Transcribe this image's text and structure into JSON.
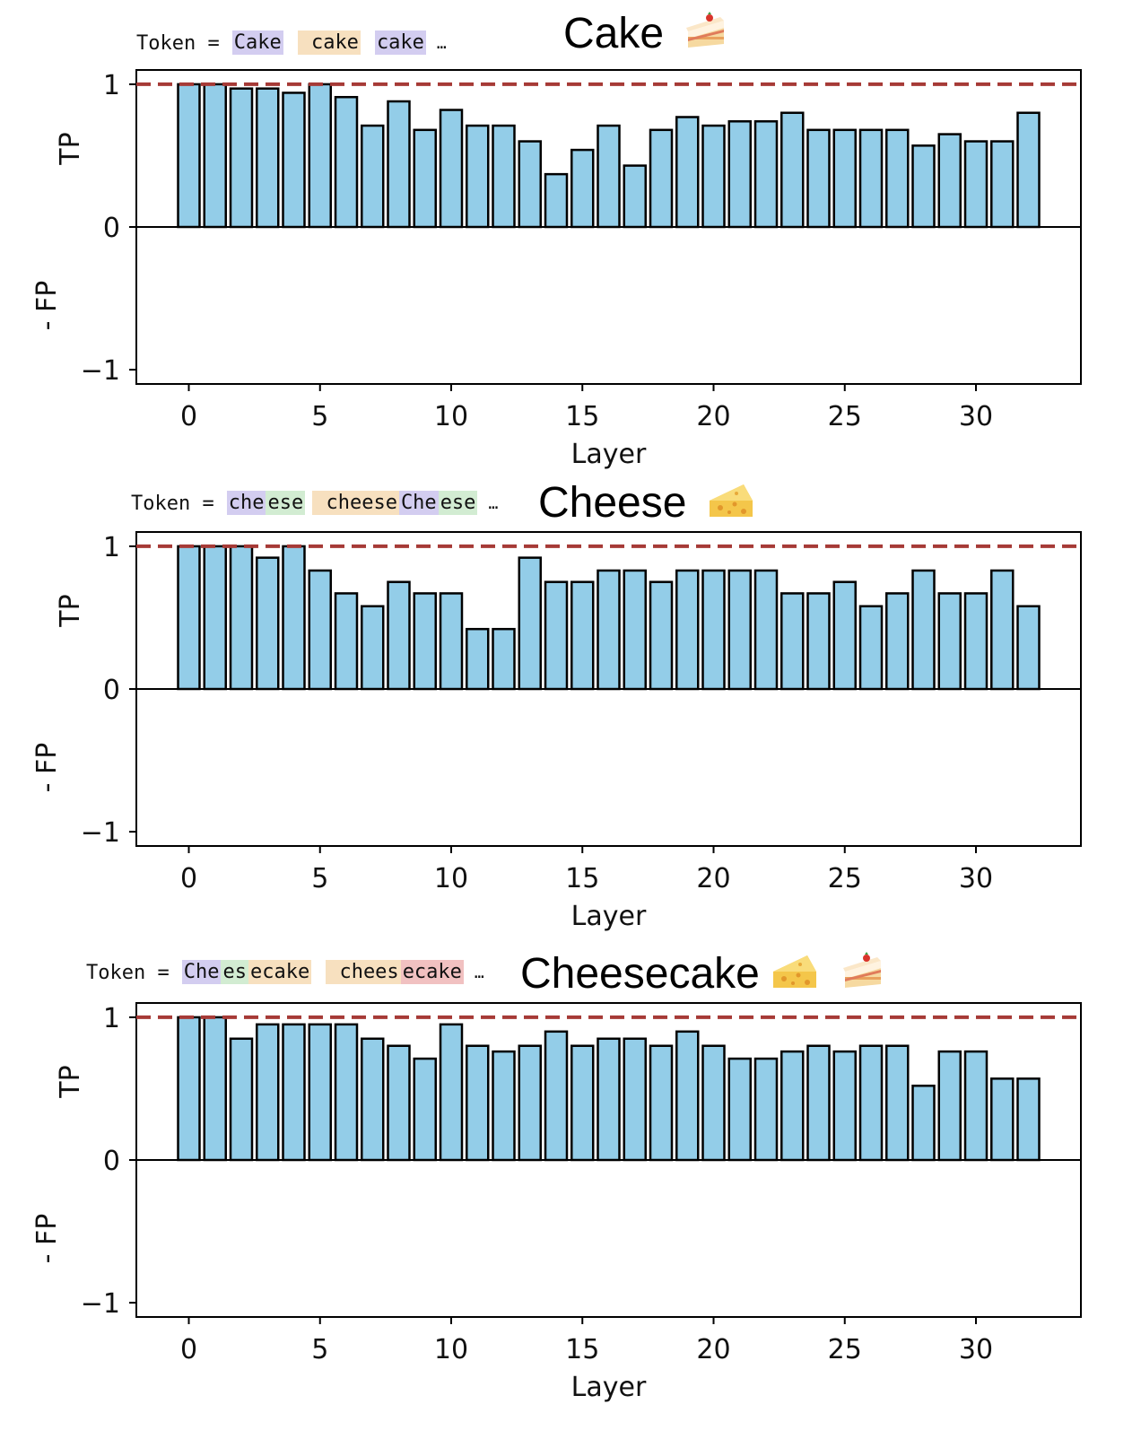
{
  "colors": {
    "bar_fill": "#93cde8",
    "bar_stroke": "#000000",
    "ref_line": "#a63a36",
    "token_purple": "#d3cdf0",
    "token_green": "#d2ecd2",
    "token_orange": "#f7e0bf",
    "token_red": "#f1c1c1"
  },
  "panels": [
    {
      "id": "cake",
      "title": "Cake",
      "emoji": [
        "cake"
      ],
      "token_label": "Token  =",
      "tokens": [
        [
          {
            "text": "Cake",
            "color": "purple"
          }
        ],
        [
          {
            "text": " cake",
            "color": "orange"
          }
        ],
        [
          {
            "text": "cake",
            "color": "purple"
          }
        ]
      ],
      "ellipsis": "…"
    },
    {
      "id": "cheese",
      "title": "Cheese",
      "emoji": [
        "cheese"
      ],
      "token_label": "Token  =",
      "tokens": [
        [
          {
            "text": "che",
            "color": "purple"
          },
          {
            "text": "ese",
            "color": "green"
          }
        ],
        [
          {
            "text": " cheese",
            "color": "orange"
          },
          {
            "text": "Che",
            "color": "purple"
          },
          {
            "text": "ese",
            "color": "green"
          }
        ]
      ],
      "ellipsis": "…"
    },
    {
      "id": "cheesecake",
      "title": "Cheesecake",
      "emoji": [
        "cheese",
        "cake"
      ],
      "token_label": "Token  =",
      "tokens": [
        [
          {
            "text": "Che",
            "color": "purple"
          },
          {
            "text": "es",
            "color": "green"
          },
          {
            "text": "ecake",
            "color": "orange"
          }
        ],
        [
          {
            "text": " chees",
            "color": "orange"
          },
          {
            "text": "ecake",
            "color": "red"
          }
        ]
      ],
      "ellipsis": "…"
    }
  ],
  "chart_data": [
    {
      "type": "bar",
      "title": "Cake",
      "xlabel": "Layer",
      "ylabel_pos": "TP",
      "ylabel_neg": "- FP",
      "xlim": [
        -2,
        34
      ],
      "ylim": [
        -1.1,
        1.1
      ],
      "xticks": [
        0,
        5,
        10,
        15,
        20,
        25,
        30
      ],
      "yticks": [
        -1,
        0,
        1
      ],
      "ytick_labels": [
        "−1",
        "0",
        "1"
      ],
      "reference_line": 1,
      "x": [
        0,
        1,
        2,
        3,
        4,
        5,
        6,
        7,
        8,
        9,
        10,
        11,
        12,
        13,
        14,
        15,
        16,
        17,
        18,
        19,
        20,
        21,
        22,
        23,
        24,
        25,
        26,
        27,
        28,
        29,
        30,
        31,
        32
      ],
      "values": [
        1.0,
        1.0,
        0.97,
        0.97,
        0.94,
        1.0,
        0.91,
        0.71,
        0.88,
        0.68,
        0.82,
        0.71,
        0.71,
        0.6,
        0.37,
        0.54,
        0.71,
        0.43,
        0.68,
        0.77,
        0.71,
        0.74,
        0.74,
        0.8,
        0.68,
        0.68,
        0.68,
        0.68,
        0.57,
        0.65,
        0.6,
        0.6,
        0.8
      ]
    },
    {
      "type": "bar",
      "title": "Cheese",
      "xlabel": "Layer",
      "ylabel_pos": "TP",
      "ylabel_neg": "- FP",
      "xlim": [
        -2,
        34
      ],
      "ylim": [
        -1.1,
        1.1
      ],
      "xticks": [
        0,
        5,
        10,
        15,
        20,
        25,
        30
      ],
      "yticks": [
        -1,
        0,
        1
      ],
      "ytick_labels": [
        "−1",
        "0",
        "1"
      ],
      "reference_line": 1,
      "x": [
        0,
        1,
        2,
        3,
        4,
        5,
        6,
        7,
        8,
        9,
        10,
        11,
        12,
        13,
        14,
        15,
        16,
        17,
        18,
        19,
        20,
        21,
        22,
        23,
        24,
        25,
        26,
        27,
        28,
        29,
        30,
        31,
        32
      ],
      "values": [
        1.0,
        1.0,
        1.0,
        0.92,
        1.0,
        0.83,
        0.67,
        0.58,
        0.75,
        0.67,
        0.67,
        0.42,
        0.42,
        0.92,
        0.75,
        0.75,
        0.83,
        0.83,
        0.75,
        0.83,
        0.83,
        0.83,
        0.83,
        0.67,
        0.67,
        0.75,
        0.58,
        0.67,
        0.83,
        0.67,
        0.67,
        0.83,
        0.58
      ]
    },
    {
      "type": "bar",
      "title": "Cheesecake",
      "xlabel": "Layer",
      "ylabel_pos": "TP",
      "ylabel_neg": "- FP",
      "xlim": [
        -2,
        34
      ],
      "ylim": [
        -1.1,
        1.1
      ],
      "xticks": [
        0,
        5,
        10,
        15,
        20,
        25,
        30
      ],
      "yticks": [
        -1,
        0,
        1
      ],
      "ytick_labels": [
        "−1",
        "0",
        "1"
      ],
      "reference_line": 1,
      "x": [
        0,
        1,
        2,
        3,
        4,
        5,
        6,
        7,
        8,
        9,
        10,
        11,
        12,
        13,
        14,
        15,
        16,
        17,
        18,
        19,
        20,
        21,
        22,
        23,
        24,
        25,
        26,
        27,
        28,
        29,
        30,
        31,
        32
      ],
      "values": [
        1.0,
        1.0,
        0.85,
        0.95,
        0.95,
        0.95,
        0.95,
        0.85,
        0.8,
        0.71,
        0.95,
        0.8,
        0.76,
        0.8,
        0.9,
        0.8,
        0.85,
        0.85,
        0.8,
        0.9,
        0.8,
        0.71,
        0.71,
        0.76,
        0.8,
        0.76,
        0.8,
        0.8,
        0.52,
        0.76,
        0.76,
        0.57,
        0.57
      ]
    }
  ]
}
